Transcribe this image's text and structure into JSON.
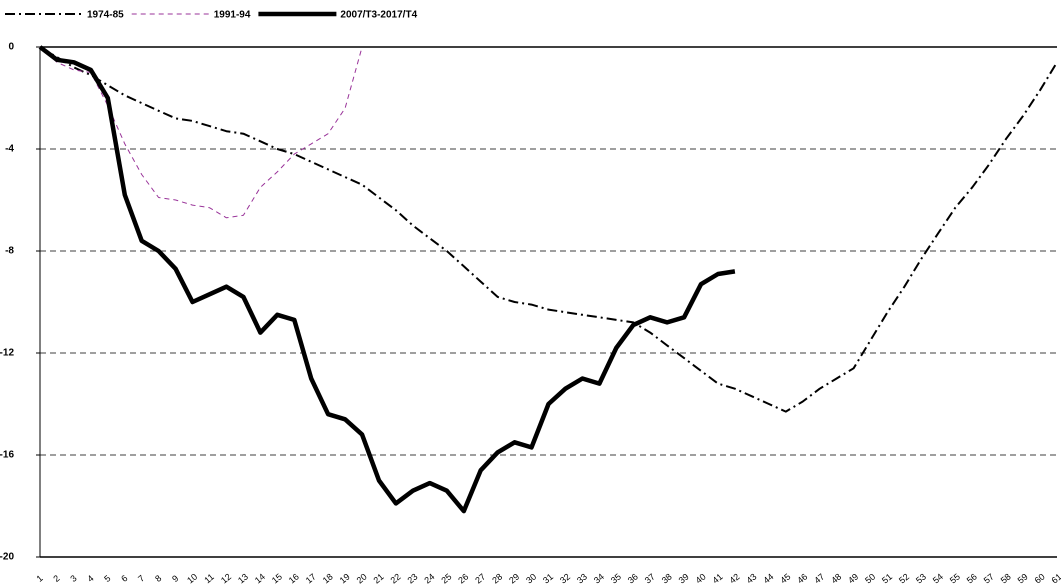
{
  "chart_data": {
    "type": "line",
    "categories": [
      "1",
      "2",
      "3",
      "4",
      "5",
      "6",
      "7",
      "8",
      "9",
      "10",
      "11",
      "12",
      "13",
      "14",
      "15",
      "16",
      "17",
      "18",
      "19",
      "20",
      "21",
      "22",
      "23",
      "24",
      "25",
      "26",
      "27",
      "28",
      "29",
      "30",
      "31",
      "32",
      "33",
      "34",
      "35",
      "36",
      "37",
      "38",
      "39",
      "40",
      "41",
      "42",
      "43",
      "44",
      "45",
      "46",
      "47",
      "48",
      "49",
      "50",
      "51",
      "52",
      "53",
      "54",
      "55",
      "56",
      "57",
      "58",
      "59",
      "60",
      "61"
    ],
    "series": [
      {
        "name": "1974-85",
        "color": "#000000",
        "style": "dashdot",
        "values": [
          0,
          -0.4,
          -0.8,
          -1.1,
          -1.5,
          -1.9,
          -2.2,
          -2.5,
          -2.8,
          -2.9,
          -3.1,
          -3.3,
          -3.4,
          -3.7,
          -4.0,
          -4.2,
          -4.5,
          -4.8,
          -5.1,
          -5.4,
          -5.9,
          -6.4,
          -7.0,
          -7.5,
          -8.0,
          -8.6,
          -9.2,
          -9.8,
          -10.0,
          -10.1,
          -10.3,
          -10.4,
          -10.5,
          -10.6,
          -10.7,
          -10.8,
          -11.2,
          -11.7,
          -12.2,
          -12.7,
          -13.2,
          -13.4,
          -13.7,
          -14.0,
          -14.3,
          -13.9,
          -13.4,
          -13.0,
          -12.6,
          -11.5,
          -10.4,
          -9.4,
          -8.3,
          -7.3,
          -6.3,
          -5.5,
          -4.6,
          -3.6,
          -2.7,
          -1.7,
          -0.6
        ]
      },
      {
        "name": "1991-94",
        "color": "#993399",
        "style": "dashed",
        "values": [
          0,
          -0.6,
          -0.9,
          -1.0,
          -2.3,
          -3.8,
          -5.0,
          -5.9,
          -6.0,
          -6.2,
          -6.3,
          -6.7,
          -6.6,
          -5.5,
          -4.9,
          -4.2,
          -3.8,
          -3.4,
          -2.4,
          0,
          null,
          null,
          null,
          null,
          null,
          null,
          null,
          null,
          null,
          null,
          null,
          null,
          null,
          null,
          null,
          null,
          null,
          null,
          null,
          null,
          null,
          null,
          null,
          null,
          null,
          null,
          null,
          null,
          null,
          null,
          null,
          null,
          null,
          null,
          null,
          null,
          null,
          null,
          null,
          null,
          null
        ]
      },
      {
        "name": "2007/T3-2017/T4",
        "color": "#000000",
        "style": "bold",
        "values": [
          0,
          -0.5,
          -0.6,
          -0.9,
          -2.0,
          -5.8,
          -7.6,
          -8.0,
          -8.7,
          -10.0,
          -9.7,
          -9.4,
          -9.8,
          -11.2,
          -10.5,
          -10.7,
          -13.0,
          -14.4,
          -14.6,
          -15.2,
          -17.0,
          -17.9,
          -17.4,
          -17.1,
          -17.4,
          -18.2,
          -16.6,
          -15.9,
          -15.5,
          -15.7,
          -14.0,
          -13.4,
          -13.0,
          -13.2,
          -11.8,
          -10.9,
          -10.6,
          -10.8,
          -10.6,
          -9.3,
          -8.9,
          -8.8,
          null,
          null,
          null,
          null,
          null,
          null,
          null,
          null,
          null,
          null,
          null,
          null,
          null,
          null,
          null,
          null,
          null,
          null,
          null
        ]
      }
    ],
    "ylim": [
      -20,
      0
    ],
    "yticks": [
      0,
      -4,
      -8,
      -12,
      -16,
      -20
    ],
    "grid": true,
    "legend": "top"
  }
}
